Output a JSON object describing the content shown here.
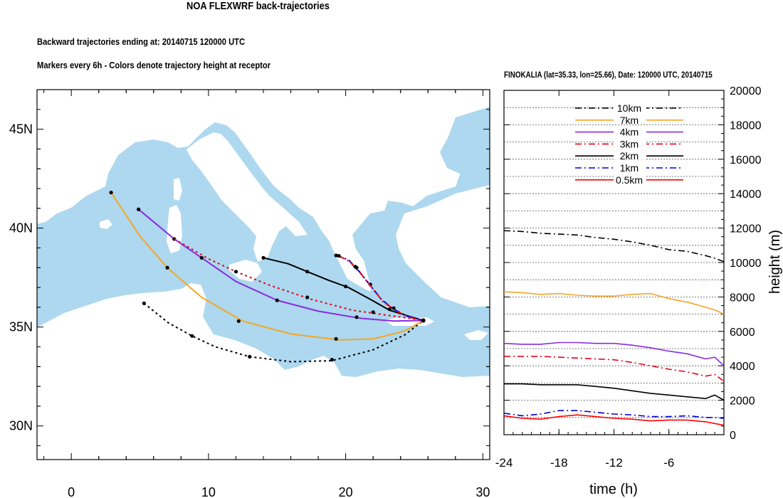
{
  "header": {
    "title": "NOA FLEXWRF back-trajectories",
    "line1": "Backward trajectories ending at: 20140715  120000 UTC",
    "line2": "Markers every 6h - Colors denote trajectory height at receptor"
  },
  "colors": {
    "sea": "#add8ef",
    "land": "#ffffff",
    "10km": "#000000",
    "7km": "#f5a623",
    "4km": "#8a2be2",
    "3km": "#e8001c",
    "2km": "#000000",
    "1km": "#0000dd",
    "0.5km": "#ff0000"
  },
  "chart_data": [
    {
      "type": "line",
      "subtype": "trajectory-map",
      "title": "",
      "x_ticks": [
        "0",
        "10",
        "20",
        "30"
      ],
      "y_ticks": [
        "30N",
        "35N",
        "40N",
        "45N"
      ],
      "xlim": [
        -2.5,
        30.5
      ],
      "ylim": [
        28.3,
        47
      ],
      "receptor": [
        25.66,
        35.33
      ],
      "series": [
        {
          "height": "0.5km",
          "style": "dotted",
          "color": "#000000",
          "x": [
            5.3,
            7.1,
            8.8,
            10.5,
            13.0,
            16.0,
            19.0,
            22.0,
            24.3,
            25.66
          ],
          "y": [
            36.2,
            35.2,
            34.55,
            34.0,
            33.5,
            33.25,
            33.3,
            33.85,
            34.6,
            35.33
          ],
          "markers_x": [
            5.3,
            8.8,
            13.0,
            19.0
          ],
          "markers_y": [
            36.2,
            34.55,
            33.5,
            33.35
          ]
        },
        {
          "height": "7km",
          "style": "solid",
          "color": "#f5a623",
          "x": [
            2.9,
            5.0,
            7.0,
            9.5,
            12.5,
            16.0,
            19.5,
            22.0,
            24.3,
            25.66
          ],
          "y": [
            41.8,
            39.6,
            38.0,
            36.5,
            35.3,
            34.65,
            34.35,
            34.4,
            34.8,
            35.33
          ],
          "markers_x": [
            2.9,
            7.0,
            12.2,
            19.3
          ],
          "markers_y": [
            41.8,
            38.0,
            35.3,
            34.4
          ]
        },
        {
          "height": "4km",
          "style": "solid",
          "color": "#8a2be2",
          "x": [
            4.9,
            7.5,
            9.5,
            12.0,
            15.0,
            18.0,
            21.0,
            23.5,
            25.66
          ],
          "y": [
            40.95,
            39.45,
            38.5,
            37.3,
            36.35,
            35.8,
            35.45,
            35.3,
            35.33
          ],
          "markers_x": [
            4.9,
            7.5,
            9.5,
            15.0,
            20.8
          ],
          "markers_y": [
            40.95,
            39.45,
            38.5,
            36.35,
            35.5
          ]
        },
        {
          "height": "3km",
          "style": "dotted",
          "color": "#e8001c",
          "x": [
            7.5,
            10.0,
            12.0,
            14.5,
            17.5,
            20.5,
            23.0,
            24.6,
            25.66
          ],
          "y": [
            39.45,
            38.45,
            37.8,
            37.1,
            36.4,
            35.85,
            35.6,
            35.45,
            35.33
          ],
          "markers_x": [
            12.0,
            17.2,
            22.0
          ],
          "markers_y": [
            37.8,
            36.5,
            35.75
          ]
        },
        {
          "height": "2km",
          "style": "solid",
          "color": "#000000",
          "x": [
            14.0,
            15.8,
            17.2,
            18.8,
            20.2,
            21.8,
            23.2,
            24.6,
            25.66
          ],
          "y": [
            38.5,
            38.2,
            37.8,
            37.35,
            37.0,
            36.4,
            35.85,
            35.55,
            35.33
          ],
          "markers_x": [
            14.0,
            17.2,
            20.0,
            23.2
          ],
          "markers_y": [
            38.5,
            37.8,
            37.05,
            35.9
          ]
        },
        {
          "height": "1km",
          "style": "dashdot",
          "color": "#0000dd",
          "x": [
            19.3,
            20.2,
            21.0,
            21.8,
            22.6,
            23.5,
            24.5,
            25.66
          ],
          "y": [
            38.62,
            38.4,
            37.8,
            37.1,
            36.4,
            35.9,
            35.55,
            35.33
          ],
          "markers_x": [
            19.3,
            20.8,
            21.8,
            23.5
          ],
          "markers_y": [
            38.62,
            38.0,
            37.15,
            35.95
          ]
        },
        {
          "height": "0.5km",
          "style": "dashdot",
          "color": "#e8001c",
          "x": [
            19.5,
            20.3,
            21.1,
            21.9,
            22.7,
            23.6,
            24.6,
            25.66
          ],
          "y": [
            38.6,
            38.3,
            37.7,
            37.0,
            36.3,
            35.85,
            35.5,
            35.33
          ],
          "markers_x": [
            19.5,
            20.7
          ],
          "markers_y": [
            38.6,
            38.05
          ]
        }
      ]
    },
    {
      "type": "line",
      "title": "FINOKALIA (lat=35.33,  lon=25.66), Date: 120000 UTC, 20140715",
      "xlabel": "time (h)",
      "ylabel": "height (m)",
      "xlim": [
        -24,
        0
      ],
      "ylim": [
        0,
        20000
      ],
      "x_ticks": [
        "-24",
        "-18",
        "-12",
        "-6"
      ],
      "x_tick_values": [
        -24,
        -18,
        -12,
        -6
      ],
      "y_ticks": [
        "0",
        "2000",
        "4000",
        "6000",
        "8000",
        "10000",
        "12000",
        "14000",
        "16000",
        "18000",
        "20000"
      ],
      "y_tick_values": [
        0,
        2000,
        4000,
        6000,
        8000,
        10000,
        12000,
        14000,
        16000,
        18000,
        20000
      ],
      "grid": "horizontal dotted",
      "legend_position": "top-center",
      "legend": [
        "10km",
        "7km",
        "4km",
        "3km",
        "2km",
        "1km",
        "0.5km"
      ],
      "x": [
        -24,
        -22,
        -20,
        -18,
        -16,
        -14,
        -12,
        -10,
        -8,
        -6,
        -4,
        -2,
        -1,
        0
      ],
      "series": [
        {
          "name": "10km",
          "style": "dashdot",
          "color": "#000000",
          "values": [
            11850,
            11800,
            11700,
            11650,
            11600,
            11450,
            11350,
            11200,
            11000,
            10750,
            10650,
            10400,
            10250,
            10050
          ]
        },
        {
          "name": "7km",
          "style": "solid",
          "color": "#f5a623",
          "values": [
            8300,
            8250,
            8150,
            8200,
            8100,
            8050,
            8050,
            8150,
            8200,
            7900,
            7700,
            7400,
            7250,
            7000
          ]
        },
        {
          "name": "4km",
          "style": "solid",
          "color": "#8a2be2",
          "values": [
            5300,
            5250,
            5250,
            5350,
            5350,
            5300,
            5300,
            5200,
            5050,
            4850,
            4700,
            4400,
            4500,
            4000
          ]
        },
        {
          "name": "3km",
          "style": "dashdot",
          "color": "#e8001c",
          "values": [
            4550,
            4550,
            4550,
            4500,
            4450,
            4400,
            4350,
            4200,
            4000,
            3800,
            3650,
            3400,
            3500,
            3100
          ]
        },
        {
          "name": "2km",
          "style": "solid",
          "color": "#000000",
          "values": [
            2950,
            2950,
            2900,
            2900,
            2900,
            2800,
            2700,
            2550,
            2400,
            2300,
            2200,
            2100,
            2300,
            2000
          ]
        },
        {
          "name": "1km",
          "style": "dashdot",
          "color": "#0000dd",
          "values": [
            1250,
            1100,
            1200,
            1400,
            1400,
            1300,
            1200,
            1150,
            1050,
            1050,
            1100,
            1000,
            1000,
            950
          ]
        },
        {
          "name": "0.5km",
          "style": "solid",
          "color": "#ff0000",
          "values": [
            1100,
            950,
            900,
            1050,
            1150,
            1050,
            950,
            900,
            800,
            850,
            850,
            750,
            650,
            550
          ]
        }
      ]
    }
  ]
}
